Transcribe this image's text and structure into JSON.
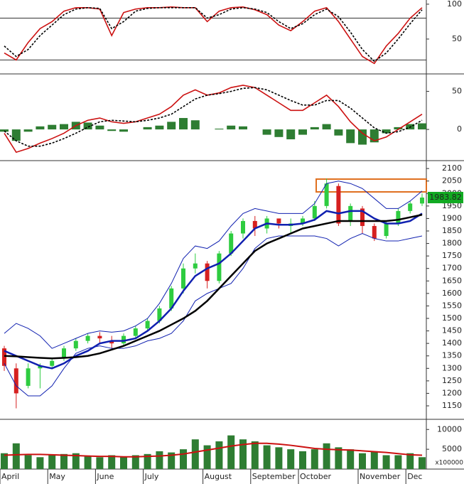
{
  "chart_data": [
    {
      "type": "line",
      "ylim": [
        0,
        106
      ],
      "yticks": [
        50,
        100
      ],
      "reference_lines": [
        20,
        80
      ],
      "series": [
        {
          "color": "#cc1111",
          "values": [
            30,
            20,
            45,
            65,
            75,
            90,
            95,
            95,
            93,
            55,
            88,
            93,
            95,
            95,
            96,
            95,
            95,
            75,
            90,
            95,
            96,
            92,
            85,
            70,
            62,
            75,
            90,
            95,
            75,
            50,
            25,
            15,
            40,
            58,
            80,
            95
          ]
        },
        {
          "color": "#000000",
          "dashed": true,
          "values": [
            40,
            25,
            35,
            55,
            70,
            85,
            93,
            95,
            94,
            65,
            75,
            90,
            94,
            95,
            95,
            95,
            95,
            80,
            85,
            93,
            95,
            93,
            88,
            75,
            65,
            72,
            85,
            93,
            82,
            60,
            35,
            18,
            30,
            50,
            72,
            92
          ]
        }
      ]
    },
    {
      "type": "macd",
      "ylim": [
        -41,
        72
      ],
      "yticks": [
        0,
        50
      ],
      "histogram_color": "#2e7d32",
      "histogram": [
        -3,
        -15,
        -3,
        4,
        6,
        7,
        10,
        9,
        5,
        -2,
        -3,
        0,
        3,
        5,
        10,
        15,
        12,
        0,
        1,
        5,
        4,
        0,
        -7,
        -10,
        -13,
        -7,
        3,
        7,
        -8,
        -18,
        -20,
        -17,
        -5,
        3,
        7,
        8
      ],
      "series": [
        {
          "color": "#cc1111",
          "values": [
            -5,
            -30,
            -25,
            -18,
            -12,
            -5,
            5,
            12,
            15,
            10,
            8,
            10,
            15,
            20,
            30,
            45,
            52,
            45,
            48,
            55,
            58,
            55,
            45,
            35,
            25,
            25,
            35,
            45,
            30,
            10,
            -5,
            -15,
            -10,
            0,
            10,
            20
          ]
        },
        {
          "color": "#000000",
          "dashed": true,
          "values": [
            -2,
            -15,
            -22,
            -22,
            -18,
            -12,
            -5,
            3,
            10,
            12,
            11,
            10,
            12,
            15,
            20,
            30,
            40,
            45,
            47,
            50,
            54,
            55,
            52,
            45,
            38,
            32,
            32,
            38,
            38,
            28,
            15,
            2,
            -5,
            -3,
            3,
            12
          ]
        }
      ]
    },
    {
      "type": "candlestick",
      "ylim": [
        1096,
        2126
      ],
      "yticks": [
        1150,
        1200,
        1250,
        1300,
        1350,
        1400,
        1450,
        1500,
        1550,
        1600,
        1650,
        1700,
        1750,
        1800,
        1850,
        1900,
        1950,
        2000,
        2050,
        2100
      ],
      "up_color": "#2ecc40",
      "down_color": "#d62020",
      "last_price": 1983.82,
      "last_price_color": "#11aa22",
      "open": [
        1380,
        1300,
        1230,
        1300,
        1310,
        1340,
        1380,
        1410,
        1430,
        1410,
        1400,
        1430,
        1460,
        1490,
        1540,
        1620,
        1700,
        1720,
        1650,
        1760,
        1840,
        1890,
        1860,
        1900,
        1870,
        1880,
        1900,
        1950,
        2030,
        1890,
        1940,
        1870,
        1830,
        1880,
        1930,
        1960
      ],
      "high": [
        1390,
        1320,
        1320,
        1320,
        1340,
        1390,
        1420,
        1440,
        1445,
        1430,
        1440,
        1470,
        1500,
        1550,
        1630,
        1720,
        1760,
        1730,
        1770,
        1850,
        1900,
        1910,
        1910,
        1900,
        1900,
        1910,
        1970,
        2060,
        2040,
        1960,
        1950,
        1880,
        1890,
        1940,
        1970,
        2000
      ],
      "low": [
        1290,
        1140,
        1220,
        1220,
        1300,
        1330,
        1370,
        1400,
        1400,
        1380,
        1390,
        1420,
        1450,
        1480,
        1530,
        1600,
        1680,
        1620,
        1640,
        1750,
        1820,
        1830,
        1840,
        1860,
        1840,
        1870,
        1890,
        1940,
        1870,
        1870,
        1840,
        1810,
        1820,
        1870,
        1920,
        1950
      ],
      "close": [
        1310,
        1200,
        1300,
        1310,
        1330,
        1380,
        1410,
        1430,
        1420,
        1400,
        1430,
        1460,
        1490,
        1540,
        1620,
        1700,
        1720,
        1650,
        1760,
        1840,
        1890,
        1860,
        1900,
        1880,
        1880,
        1900,
        1950,
        2040,
        1880,
        1950,
        1870,
        1820,
        1880,
        1930,
        1960,
        1983.82
      ],
      "series": [
        {
          "color": "#1020b0",
          "width": 1,
          "values": [
            1440,
            1480,
            1460,
            1430,
            1380,
            1400,
            1420,
            1440,
            1450,
            1445,
            1450,
            1470,
            1500,
            1560,
            1640,
            1740,
            1790,
            1780,
            1810,
            1870,
            1920,
            1940,
            1930,
            1920,
            1920,
            1920,
            1960,
            2040,
            2050,
            2040,
            2020,
            1980,
            1940,
            1940,
            1970,
            2010
          ]
        },
        {
          "color": "#1020b0",
          "width": 1,
          "values": [
            1320,
            1230,
            1190,
            1190,
            1230,
            1300,
            1360,
            1380,
            1390,
            1380,
            1380,
            1390,
            1410,
            1420,
            1440,
            1490,
            1570,
            1600,
            1620,
            1640,
            1700,
            1780,
            1820,
            1830,
            1830,
            1830,
            1830,
            1820,
            1790,
            1820,
            1840,
            1820,
            1810,
            1810,
            1820,
            1830
          ]
        },
        {
          "color": "#1020b0",
          "width": 2.5,
          "values": [
            1370,
            1350,
            1330,
            1310,
            1300,
            1320,
            1350,
            1370,
            1400,
            1410,
            1410,
            1420,
            1450,
            1490,
            1540,
            1610,
            1670,
            1700,
            1720,
            1760,
            1810,
            1860,
            1880,
            1875,
            1875,
            1880,
            1895,
            1930,
            1920,
            1930,
            1930,
            1900,
            1880,
            1880,
            1890,
            1920
          ]
        },
        {
          "color": "#000000",
          "width": 2.5,
          "values": [
            1350,
            1348,
            1345,
            1342,
            1340,
            1342,
            1345,
            1350,
            1360,
            1375,
            1390,
            1410,
            1430,
            1450,
            1475,
            1500,
            1530,
            1570,
            1620,
            1670,
            1720,
            1770,
            1800,
            1820,
            1840,
            1860,
            1870,
            1880,
            1890,
            1890,
            1890,
            1890,
            1890,
            1895,
            1905,
            1915
          ]
        }
      ]
    },
    {
      "type": "bar",
      "ylim": [
        0,
        12200
      ],
      "yticks": [
        5000,
        10000
      ],
      "unit_label": "x100000",
      "color": "#2e7d32",
      "categories": [
        "April",
        null,
        null,
        null,
        "May",
        null,
        null,
        null,
        "June",
        null,
        null,
        null,
        "July",
        null,
        null,
        null,
        null,
        "August",
        null,
        null,
        null,
        "September",
        null,
        null,
        null,
        "October",
        null,
        null,
        null,
        null,
        "November",
        null,
        null,
        null,
        "Dec",
        null
      ],
      "values": [
        4000,
        6500,
        3500,
        3000,
        3500,
        3800,
        4000,
        3200,
        3000,
        3500,
        3000,
        3500,
        3800,
        4500,
        4200,
        5000,
        7500,
        6000,
        7000,
        8500,
        7500,
        7000,
        6000,
        5500,
        5000,
        4500,
        5000,
        6500,
        5500,
        5000,
        4000,
        4500,
        3500,
        3500,
        4000,
        3000
      ],
      "series": [
        {
          "color": "#cc1111",
          "width": 2,
          "values": [
            3500,
            3600,
            3700,
            3700,
            3600,
            3500,
            3400,
            3300,
            3200,
            3200,
            3100,
            3100,
            3200,
            3300,
            3500,
            3800,
            4300,
            4800,
            5300,
            5800,
            6200,
            6500,
            6500,
            6300,
            6000,
            5600,
            5200,
            5000,
            4900,
            4800,
            4600,
            4400,
            4200,
            3900,
            3600,
            3500
          ]
        }
      ]
    }
  ]
}
